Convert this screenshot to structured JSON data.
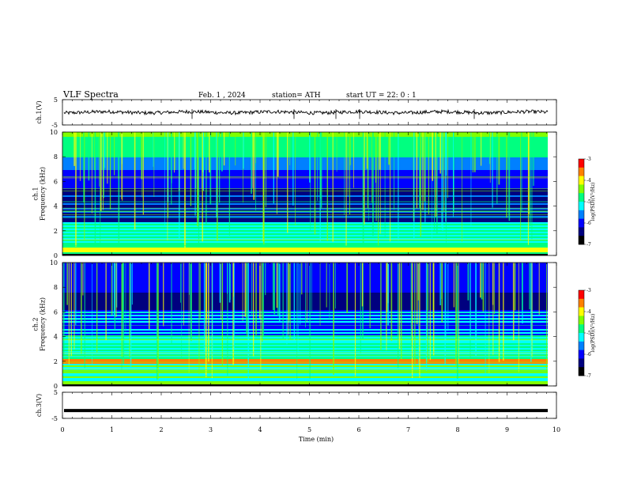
{
  "header": {
    "title": "VLF  Spectra",
    "date": "Feb. 1  , 2024",
    "station": "station= ATH",
    "start": "start  UT  =    22: 0   : 1"
  },
  "chart_data": [
    {
      "type": "line",
      "name": "ch1-waveform",
      "ylabel": "ch.1(V)",
      "ylim": [
        -5,
        5
      ],
      "yticks": [
        "5",
        "-5"
      ],
      "xlim": [
        0,
        10
      ],
      "baseline": 0,
      "approx_amplitude": 1
    },
    {
      "type": "heatmap",
      "name": "ch1-spectrogram",
      "ylabel": "ch.1\nFrequency  (kHz)",
      "ylim": [
        0,
        10
      ],
      "yticks": [
        "0",
        "2",
        "4",
        "6",
        "8",
        "10"
      ],
      "xlim": [
        0,
        9.8
      ],
      "colorbar": {
        "label": "log(PSD)(V²/Hz)",
        "range": [
          -7,
          -3
        ],
        "ticks": [
          "-3",
          "-4",
          "-5",
          "-6",
          "-7"
        ]
      }
    },
    {
      "type": "heatmap",
      "name": "ch2-spectrogram",
      "ylabel": "ch.2\nFrequency  (kHz)",
      "ylim": [
        0,
        10
      ],
      "yticks": [
        "0",
        "2",
        "4",
        "6",
        "8",
        "10"
      ],
      "xlim": [
        0,
        9.8
      ],
      "colorbar": {
        "label": "log(PSD)(V²/Hz)",
        "range": [
          -7,
          -3
        ],
        "ticks": [
          "-3",
          "-4",
          "-5",
          "-6",
          "-7"
        ]
      }
    },
    {
      "type": "line",
      "name": "ch3-waveform",
      "ylabel": "ch.3(V)",
      "ylim": [
        -5,
        5
      ],
      "yticks": [
        "5",
        "-5"
      ],
      "xlim": [
        0,
        10
      ],
      "baseline": -2,
      "approx_amplitude": 0
    }
  ],
  "xaxis": {
    "label": "Time  (min)",
    "ticks": [
      "0",
      "1",
      "2",
      "3",
      "4",
      "5",
      "6",
      "7",
      "8",
      "9",
      "10"
    ],
    "range": [
      0,
      10
    ]
  },
  "colors": {
    "colormap": [
      "#000000",
      "#00007f",
      "#0000ff",
      "#0080ff",
      "#00ffff",
      "#00ff80",
      "#80ff00",
      "#ffff00",
      "#ff8000",
      "#ff0000",
      "#ffffff"
    ]
  }
}
